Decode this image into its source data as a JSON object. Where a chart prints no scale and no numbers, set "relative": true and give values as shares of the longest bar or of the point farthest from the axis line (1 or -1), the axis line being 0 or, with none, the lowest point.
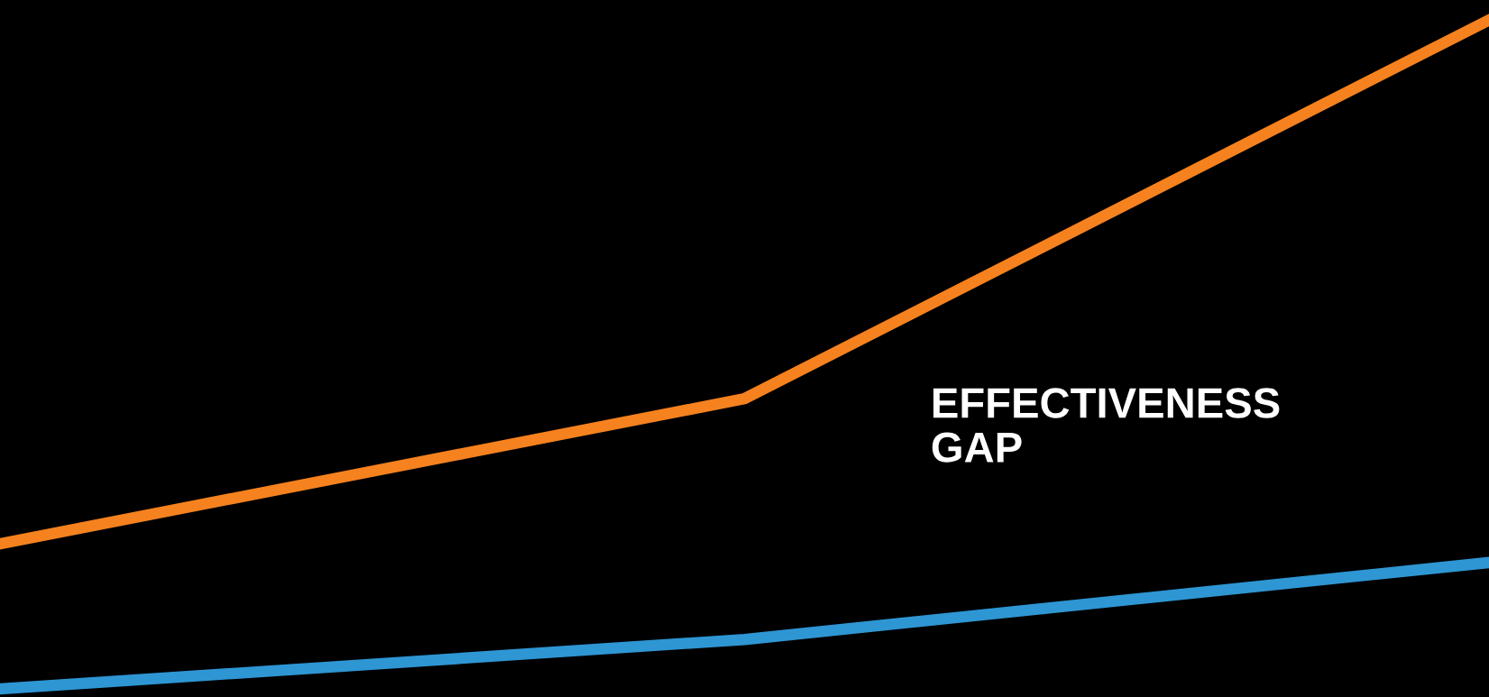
{
  "chart_data": {
    "type": "line",
    "relative": true,
    "categories": [
      null,
      null,
      null
    ],
    "series": [
      {
        "color": "#f5821f",
        "values": [
          0.217,
          0.434,
          1
        ]
      },
      {
        "color": "#2e96d3",
        "values": [
          0,
          0.074,
          0.189
        ]
      }
    ],
    "annotations": [
      "EFFECTIVENESS GAP"
    ],
    "line_style": "solid"
  }
}
